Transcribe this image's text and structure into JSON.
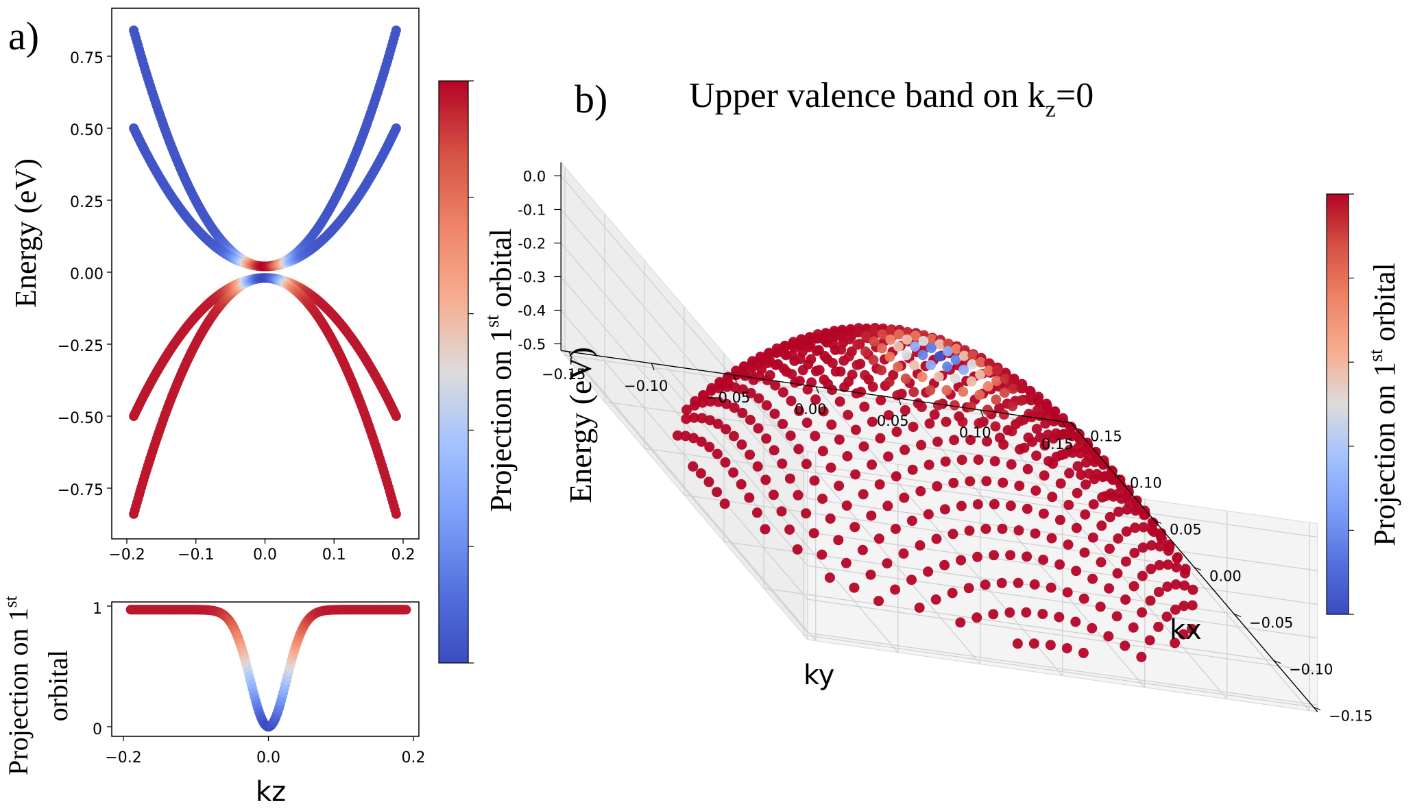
{
  "colors": {
    "low": "#3b4cc0",
    "mid": "#dddddd",
    "high": "#b40426"
  },
  "panel_a": {
    "label": "a)",
    "cbar_label": "Projection on 1",
    "cbar_sup": "st",
    "cbar_label_end": " orbital"
  },
  "panel_b": {
    "label": "b)",
    "title": "Upper valence band on k",
    "title_sub": "z",
    "title_end": "=0",
    "cbar_label": "Projection on 1",
    "cbar_sup": "st",
    "cbar_label_end": " orbital"
  },
  "chart_data": [
    {
      "type": "scatter",
      "name": "band-structure",
      "xlabel": "",
      "ylabel": "Energy (eV)",
      "xlim": [
        -0.2,
        0.2
      ],
      "ylim": [
        -0.9,
        0.9
      ],
      "xticks": [
        -0.2,
        -0.1,
        0.0,
        0.1,
        0.2
      ],
      "xtick_labels": [
        "−0.2",
        "−0.1",
        "0.0",
        "0.1",
        "0.2"
      ],
      "yticks": [
        0.75,
        0.5,
        0.25,
        0.0,
        -0.25,
        -0.5,
        -0.75
      ],
      "ytick_labels": [
        "0.75",
        "0.50",
        "0.25",
        "0.00",
        "−0.25",
        "−0.50",
        "−0.75"
      ],
      "colorbar": "Projection on 1st orbital",
      "series": [
        {
          "name": "conduction-upper",
          "kz_range": [
            -0.19,
            0.19
          ],
          "energy_at_edge": 0.84,
          "energy_at_zero": 0.02
        },
        {
          "name": "conduction-lower",
          "kz_range": [
            -0.19,
            0.19
          ],
          "energy_at_edge": 0.5,
          "energy_at_zero": 0.02
        },
        {
          "name": "valence-upper",
          "kz_range": [
            -0.19,
            0.19
          ],
          "energy_at_edge": -0.5,
          "energy_at_zero": -0.02
        },
        {
          "name": "valence-lower",
          "kz_range": [
            -0.19,
            0.19
          ],
          "energy_at_edge": -0.84,
          "energy_at_zero": -0.02
        }
      ]
    },
    {
      "type": "scatter",
      "name": "projection",
      "xlabel": "kz",
      "ylabel": "Projection on 1st orbital",
      "ylabel_line1": "Projection on 1",
      "ylabel_sup": "st",
      "ylabel_line2": "orbital",
      "xlim": [
        -0.21,
        0.21
      ],
      "ylim": [
        -0.05,
        1.05
      ],
      "xticks": [
        -0.2,
        0.0,
        0.2
      ],
      "xtick_labels": [
        "−0.2",
        "0.0",
        "0.2"
      ],
      "yticks": [
        1,
        0
      ],
      "ytick_labels": [
        "1",
        "0"
      ],
      "series": [
        {
          "name": "projection",
          "kz_range": [
            -0.19,
            0.19
          ],
          "value_at_zero": 0.0,
          "value_at_edge": 0.97,
          "width_kz": 0.035
        }
      ]
    },
    {
      "type": "scatter",
      "name": "3d-valence-band",
      "title": "Upper valence band on kz=0",
      "xlabel": "kx",
      "ylabel": "ky",
      "zlabel": "Energy (eV)",
      "kx_range": [
        -0.15,
        0.15
      ],
      "ky_range": [
        -0.15,
        0.15
      ],
      "z_range": [
        -0.52,
        0.0
      ],
      "zticks": [
        0.0,
        -0.1,
        -0.2,
        -0.3,
        -0.4,
        -0.5
      ],
      "ztick_labels": [
        "0.0",
        "-0.1",
        "-0.2",
        "-0.3",
        "-0.4",
        "-0.5"
      ],
      "kx_ticks": [
        -0.15,
        -0.1,
        -0.05,
        0.0,
        0.05,
        0.1,
        0.15
      ],
      "kx_tick_labels": [
        "−0.15",
        "−0.10",
        "−0.05",
        "0.00",
        "0.05",
        "0.10",
        "0.15"
      ],
      "ky_ticks": [
        -0.15,
        -0.1,
        -0.05,
        0.0,
        0.05,
        0.1,
        0.15
      ],
      "ky_tick_labels": [
        "−0.15",
        "−0.10",
        "−0.05",
        "0.00",
        "0.05",
        "0.10",
        "0.15"
      ],
      "colorbar": "Projection on 1st orbital"
    }
  ]
}
